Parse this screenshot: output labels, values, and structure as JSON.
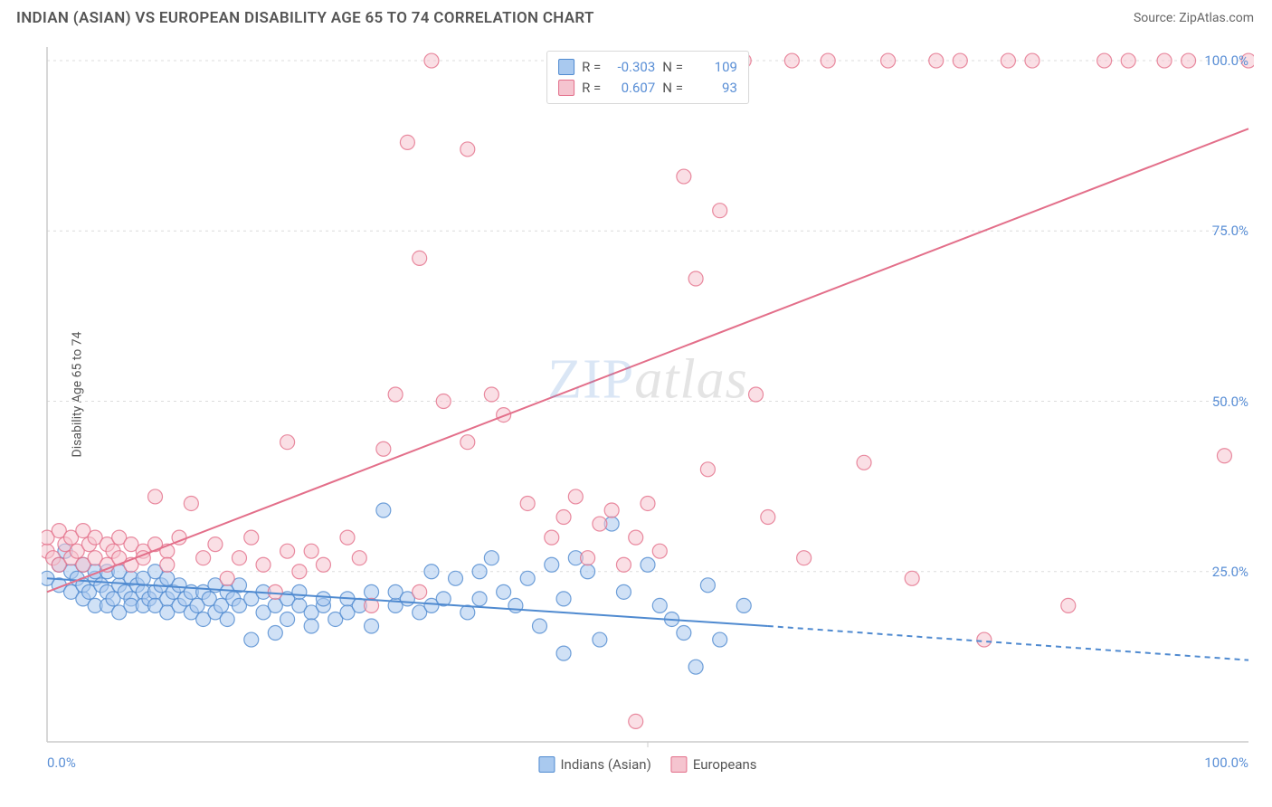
{
  "header": {
    "title": "INDIAN (ASIAN) VS EUROPEAN DISABILITY AGE 65 TO 74 CORRELATION CHART",
    "source": "Source: ZipAtlas.com"
  },
  "chart": {
    "type": "scatter",
    "ylabel": "Disability Age 65 to 74",
    "background_color": "#ffffff",
    "grid_color": "#dcdcdc",
    "axis_color": "#cccccc",
    "tick_color": "#5a8fd6",
    "tick_fontsize": 15,
    "label_fontsize": 14,
    "xlim": [
      0,
      100
    ],
    "ylim": [
      0,
      102
    ],
    "xticks": [
      {
        "v": 0,
        "label": "0.0%"
      },
      {
        "v": 100,
        "label": "100.0%"
      }
    ],
    "yticks": [
      {
        "v": 25,
        "label": "25.0%"
      },
      {
        "v": 50,
        "label": "50.0%"
      },
      {
        "v": 75,
        "label": "75.0%"
      },
      {
        "v": 100,
        "label": "100.0%"
      }
    ],
    "marker_radius": 8,
    "marker_opacity": 0.55,
    "marker_stroke_width": 1.2,
    "watermark": "ZIPatlas",
    "stats": [
      {
        "swatch_fill": "#a9c9ef",
        "swatch_stroke": "#4f8ad0",
        "r_label": "R =",
        "r": "-0.303",
        "n_label": "N =",
        "n": "109"
      },
      {
        "swatch_fill": "#f5c4cf",
        "swatch_stroke": "#e36f8a",
        "r_label": "R =",
        "r": "0.607",
        "n_label": "N =",
        "n": "93"
      }
    ],
    "bottom_legend": [
      {
        "swatch_fill": "#a9c9ef",
        "swatch_stroke": "#4f8ad0",
        "label": "Indians (Asian)"
      },
      {
        "swatch_fill": "#f5c4cf",
        "swatch_stroke": "#e36f8a",
        "label": "Europeans"
      }
    ],
    "series": [
      {
        "name": "Indians (Asian)",
        "fill": "#a9c9ef",
        "stroke": "#4f8ad0",
        "trend": {
          "x1": 0,
          "y1": 24,
          "x2": 60,
          "y2": 17,
          "solid_until": 60,
          "dash_x2": 100,
          "dash_y2": 12,
          "width": 2
        },
        "points": [
          [
            0,
            24
          ],
          [
            1,
            26
          ],
          [
            1,
            23
          ],
          [
            1.5,
            28
          ],
          [
            2,
            25
          ],
          [
            2,
            22
          ],
          [
            2.5,
            24
          ],
          [
            3,
            26
          ],
          [
            3,
            21
          ],
          [
            3,
            23
          ],
          [
            3.5,
            22
          ],
          [
            4,
            24
          ],
          [
            4,
            20
          ],
          [
            4,
            25
          ],
          [
            4.5,
            23
          ],
          [
            5,
            22
          ],
          [
            5,
            25
          ],
          [
            5,
            20
          ],
          [
            5.5,
            21
          ],
          [
            6,
            23
          ],
          [
            6,
            25
          ],
          [
            6,
            19
          ],
          [
            6.5,
            22
          ],
          [
            7,
            21
          ],
          [
            7,
            24
          ],
          [
            7,
            20
          ],
          [
            7.5,
            23
          ],
          [
            8,
            22
          ],
          [
            8,
            20
          ],
          [
            8,
            24
          ],
          [
            8.5,
            21
          ],
          [
            9,
            22
          ],
          [
            9,
            20
          ],
          [
            9,
            25
          ],
          [
            9.5,
            23
          ],
          [
            10,
            21
          ],
          [
            10,
            19
          ],
          [
            10,
            24
          ],
          [
            10.5,
            22
          ],
          [
            11,
            20
          ],
          [
            11,
            23
          ],
          [
            11.5,
            21
          ],
          [
            12,
            19
          ],
          [
            12,
            22
          ],
          [
            12.5,
            20
          ],
          [
            13,
            18
          ],
          [
            13,
            22
          ],
          [
            13.5,
            21
          ],
          [
            14,
            19
          ],
          [
            14,
            23
          ],
          [
            14.5,
            20
          ],
          [
            15,
            22
          ],
          [
            15,
            18
          ],
          [
            15.5,
            21
          ],
          [
            16,
            20
          ],
          [
            16,
            23
          ],
          [
            17,
            15
          ],
          [
            17,
            21
          ],
          [
            18,
            19
          ],
          [
            18,
            22
          ],
          [
            19,
            20
          ],
          [
            19,
            16
          ],
          [
            20,
            21
          ],
          [
            20,
            18
          ],
          [
            21,
            20
          ],
          [
            21,
            22
          ],
          [
            22,
            19
          ],
          [
            22,
            17
          ],
          [
            23,
            20
          ],
          [
            23,
            21
          ],
          [
            24,
            18
          ],
          [
            25,
            21
          ],
          [
            25,
            19
          ],
          [
            26,
            20
          ],
          [
            27,
            22
          ],
          [
            27,
            17
          ],
          [
            28,
            34
          ],
          [
            29,
            20
          ],
          [
            29,
            22
          ],
          [
            30,
            21
          ],
          [
            31,
            19
          ],
          [
            32,
            25
          ],
          [
            32,
            20
          ],
          [
            33,
            21
          ],
          [
            34,
            24
          ],
          [
            35,
            19
          ],
          [
            36,
            25
          ],
          [
            36,
            21
          ],
          [
            37,
            27
          ],
          [
            38,
            22
          ],
          [
            39,
            20
          ],
          [
            40,
            24
          ],
          [
            41,
            17
          ],
          [
            42,
            26
          ],
          [
            43,
            21
          ],
          [
            43,
            13
          ],
          [
            44,
            27
          ],
          [
            45,
            25
          ],
          [
            46,
            15
          ],
          [
            47,
            32
          ],
          [
            48,
            22
          ],
          [
            50,
            26
          ],
          [
            51,
            20
          ],
          [
            52,
            18
          ],
          [
            53,
            16
          ],
          [
            54,
            11
          ],
          [
            55,
            23
          ],
          [
            56,
            15
          ],
          [
            58,
            20
          ]
        ]
      },
      {
        "name": "Europeans",
        "fill": "#f5c4cf",
        "stroke": "#e36f8a",
        "trend": {
          "x1": 0,
          "y1": 22,
          "x2": 100,
          "y2": 90,
          "solid_until": 100,
          "width": 2
        },
        "points": [
          [
            0,
            28
          ],
          [
            0,
            30
          ],
          [
            0.5,
            27
          ],
          [
            1,
            31
          ],
          [
            1,
            26
          ],
          [
            1.5,
            29
          ],
          [
            2,
            30
          ],
          [
            2,
            27
          ],
          [
            2.5,
            28
          ],
          [
            3,
            26
          ],
          [
            3,
            31
          ],
          [
            3.5,
            29
          ],
          [
            4,
            30
          ],
          [
            4,
            27
          ],
          [
            5,
            26
          ],
          [
            5,
            29
          ],
          [
            5.5,
            28
          ],
          [
            6,
            27
          ],
          [
            6,
            30
          ],
          [
            7,
            29
          ],
          [
            7,
            26
          ],
          [
            8,
            28
          ],
          [
            8,
            27
          ],
          [
            9,
            29
          ],
          [
            9,
            36
          ],
          [
            10,
            28
          ],
          [
            10,
            26
          ],
          [
            11,
            30
          ],
          [
            12,
            35
          ],
          [
            13,
            27
          ],
          [
            14,
            29
          ],
          [
            15,
            24
          ],
          [
            16,
            27
          ],
          [
            17,
            30
          ],
          [
            18,
            26
          ],
          [
            19,
            22
          ],
          [
            20,
            28
          ],
          [
            20,
            44
          ],
          [
            21,
            25
          ],
          [
            22,
            28
          ],
          [
            23,
            26
          ],
          [
            25,
            30
          ],
          [
            26,
            27
          ],
          [
            27,
            20
          ],
          [
            28,
            43
          ],
          [
            29,
            51
          ],
          [
            30,
            88
          ],
          [
            31,
            22
          ],
          [
            31,
            71
          ],
          [
            32,
            100
          ],
          [
            33,
            50
          ],
          [
            35,
            44
          ],
          [
            35,
            87
          ],
          [
            37,
            51
          ],
          [
            38,
            48
          ],
          [
            40,
            35
          ],
          [
            42,
            30
          ],
          [
            43,
            33
          ],
          [
            44,
            36
          ],
          [
            45,
            27
          ],
          [
            46,
            32
          ],
          [
            47,
            34
          ],
          [
            48,
            26
          ],
          [
            49,
            30
          ],
          [
            50,
            35
          ],
          [
            51,
            28
          ],
          [
            52,
            100
          ],
          [
            53,
            83
          ],
          [
            54,
            68
          ],
          [
            55,
            40
          ],
          [
            56,
            78
          ],
          [
            58,
            100
          ],
          [
            59,
            51
          ],
          [
            60,
            33
          ],
          [
            62,
            100
          ],
          [
            63,
            27
          ],
          [
            65,
            100
          ],
          [
            68,
            41
          ],
          [
            70,
            100
          ],
          [
            72,
            24
          ],
          [
            74,
            100
          ],
          [
            76,
            100
          ],
          [
            78,
            15
          ],
          [
            80,
            100
          ],
          [
            82,
            100
          ],
          [
            85,
            20
          ],
          [
            88,
            100
          ],
          [
            90,
            100
          ],
          [
            93,
            100
          ],
          [
            95,
            100
          ],
          [
            98,
            42
          ],
          [
            100,
            100
          ],
          [
            49,
            3
          ]
        ]
      }
    ]
  }
}
